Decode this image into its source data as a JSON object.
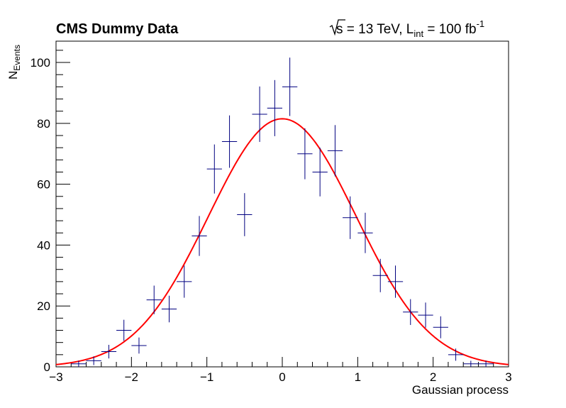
{
  "chart_data": {
    "type": "scatter",
    "title": "CMS Dummy Data",
    "lumi": {
      "sqrt_s": "s",
      "energy_text": " = 13 TeV, L",
      "int_sub": "int",
      "lumi_text": " = 100 fb",
      "lumi_sup": "-1"
    },
    "xlabel": "Gaussian process",
    "ylabel_main": "N",
    "ylabel_sub": "Events",
    "xlim": [
      -3,
      3
    ],
    "ylim": [
      0,
      107
    ],
    "x_ticks": [
      -3,
      -2,
      -1,
      0,
      1,
      2,
      3
    ],
    "x_tick_labels": [
      "−3",
      "−2",
      "−1",
      "0",
      "1",
      "2",
      "3"
    ],
    "y_ticks": [
      0,
      20,
      40,
      60,
      80,
      100
    ],
    "y_tick_labels": [
      "0",
      "20",
      "40",
      "60",
      "80",
      "100"
    ],
    "bin_width": 0.2,
    "series": [
      {
        "kind": "points",
        "color": "#000080",
        "x": [
          -2.9,
          -2.7,
          -2.5,
          -2.3,
          -2.1,
          -1.9,
          -1.7,
          -1.5,
          -1.3,
          -1.1,
          -0.9,
          -0.7,
          -0.5,
          -0.3,
          -0.1,
          0.1,
          0.3,
          0.5,
          0.7,
          0.9,
          1.1,
          1.3,
          1.5,
          1.7,
          1.9,
          2.1,
          2.3,
          2.5,
          2.7,
          2.9
        ],
        "y": [
          0,
          1,
          2,
          5,
          12,
          7,
          22,
          19,
          28,
          43,
          65,
          74,
          50,
          83,
          85,
          92,
          70,
          64,
          71,
          49,
          44,
          30,
          28,
          18,
          17,
          13,
          4,
          1,
          1,
          0
        ]
      },
      {
        "kind": "curve",
        "color": "#ff0000",
        "function": "gaussian",
        "amplitude": 81.5,
        "mean": 0.0,
        "sigma": 0.98
      }
    ]
  }
}
